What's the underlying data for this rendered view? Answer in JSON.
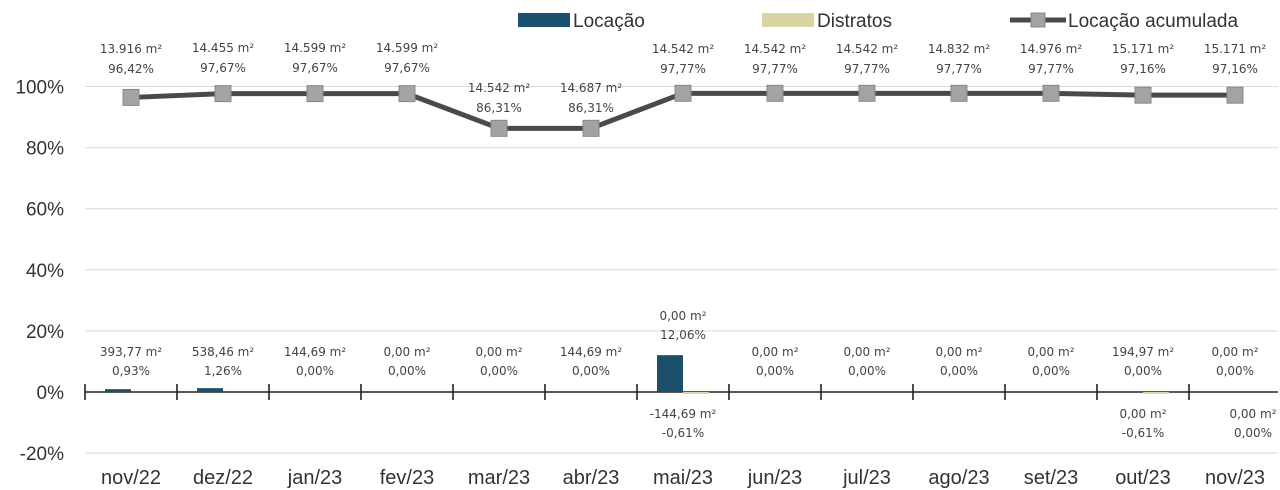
{
  "chart_data": {
    "type": "bar",
    "combo": "bar+line",
    "categories": [
      "nov/22",
      "dez/22",
      "jan/23",
      "fev/23",
      "mar/23",
      "abr/23",
      "mai/23",
      "jun/23",
      "jul/23",
      "ago/23",
      "set/23",
      "out/23",
      "nov/23"
    ],
    "ylim": [
      -20,
      100
    ],
    "yticks": [
      "100%",
      "80%",
      "60%",
      "40%",
      "20%",
      "0%",
      "-20%"
    ],
    "ytick_values": [
      100,
      80,
      60,
      40,
      20,
      0,
      -20
    ],
    "grid": true,
    "legend_position": "top-right",
    "series": [
      {
        "name": "Locação",
        "type": "bar",
        "color": "#1b4f6b",
        "values": [
          0.93,
          1.26,
          0.0,
          0.0,
          0.0,
          0.0,
          12.06,
          0.0,
          0.0,
          0.0,
          0.0,
          0.0,
          0.0
        ],
        "labels_area": [
          "393,77 m²",
          "538,46 m²",
          "144,69 m²",
          "0,00 m²",
          "0,00 m²",
          "144,69 m²",
          "0,00 m²",
          "0,00 m²",
          "0,00 m²",
          "0,00 m²",
          "0,00 m²",
          "194,97 m²",
          "0,00 m²"
        ],
        "labels_pct": [
          "0,93%",
          "1,26%",
          "0,00%",
          "0,00%",
          "0,00%",
          "0,00%",
          "12,06%",
          "0,00%",
          "0,00%",
          "0,00%",
          "0,00%",
          "0,00%",
          "0,00%"
        ]
      },
      {
        "name": "Distratos",
        "type": "bar",
        "color": "#d8d3a0",
        "values": [
          0,
          0,
          0,
          0,
          0,
          0,
          -0.61,
          0,
          0,
          0,
          0,
          -0.61,
          0.0
        ],
        "labels": [
          {
            "index": 6,
            "area": "-144,69 m²",
            "pct": "-0,61%"
          },
          {
            "index": 11,
            "area": "0,00 m²",
            "pct": "-0,61%"
          },
          {
            "index": 12,
            "area": "0,00 m²",
            "pct": "0,00%"
          }
        ]
      },
      {
        "name": "Locação acumulada",
        "type": "line",
        "color": "#4a4a4a",
        "marker_color": "#a3a3a3",
        "values": [
          96.42,
          97.67,
          97.67,
          97.67,
          86.31,
          86.31,
          97.77,
          97.77,
          97.77,
          97.77,
          97.77,
          97.16,
          97.16
        ],
        "labels_area": [
          "13.916 m²",
          "14.455 m²",
          "14.599 m²",
          "14.599 m²",
          "14.542 m²",
          "14.687 m²",
          "14.542 m²",
          "14.542 m²",
          "14.542 m²",
          "14.832 m²",
          "14.976 m²",
          "15.171 m²",
          "15.171 m²"
        ],
        "labels_pct": [
          "96,42%",
          "97,67%",
          "97,67%",
          "97,67%",
          "86,31%",
          "86,31%",
          "97,77%",
          "97,77%",
          "97,77%",
          "97,77%",
          "97,77%",
          "97,16%",
          "97,16%"
        ]
      }
    ]
  }
}
